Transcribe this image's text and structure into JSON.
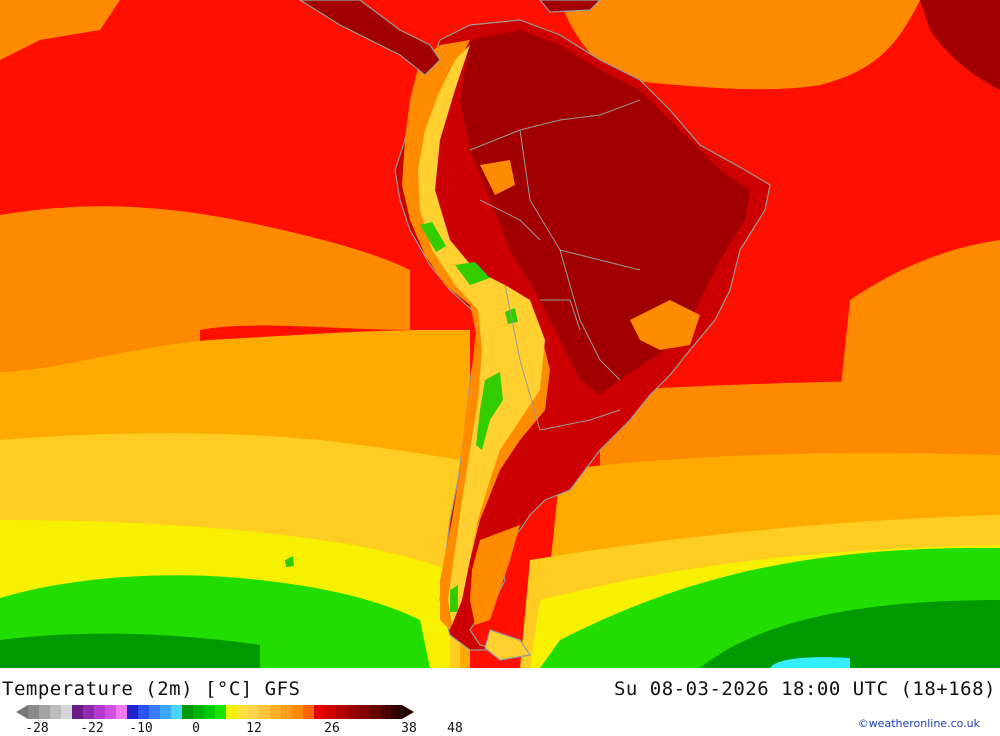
{
  "map": {
    "region": "South America",
    "colors": {
      "ocean_hot": "#fe0f00",
      "ocean_warm": "#fd8a00",
      "ocean_mild": "#feaa00",
      "ocean_cool": "#ffcc22",
      "ocean_yellow": "#f7f000",
      "ocean_green": "#22dd00",
      "ocean_dgreen": "#009900",
      "land_dark": "#a20000",
      "land_red": "#cc0000",
      "andes_orange": "#ff8c00",
      "andes_yellow": "#ffd030",
      "andes_green": "#33cc00",
      "ice": "#33eeff",
      "coast": "#9a9a9a"
    }
  },
  "footer": {
    "title": "Temperature (2m) [°C] GFS",
    "datetime": "Su 08-03-2026 18:00 UTC (18+168)",
    "credit": "©weatheronline.co.uk"
  },
  "legend": {
    "colors": [
      "#8a8a8a",
      "#a3a3a3",
      "#bdbdbd",
      "#d6d6d6",
      "#6a1b86",
      "#8f2bb0",
      "#b23ad0",
      "#d04ee0",
      "#f07af7",
      "#2222cc",
      "#2a52f0",
      "#3a7cff",
      "#3aa6ff",
      "#48d4ff",
      "#009a00",
      "#00b300",
      "#00cc00",
      "#18e600",
      "#f0f000",
      "#ffe23a",
      "#ffd24a",
      "#ffc43c",
      "#ffb228",
      "#ffa01a",
      "#ff8c00",
      "#ff6600",
      "#e60000",
      "#cc0000",
      "#b30000",
      "#9a0000",
      "#820000",
      "#680000",
      "#4c0000",
      "#300000"
    ],
    "ticks": [
      "-28",
      "-22",
      "-10",
      "0",
      "12",
      "26",
      "38",
      "48"
    ]
  }
}
